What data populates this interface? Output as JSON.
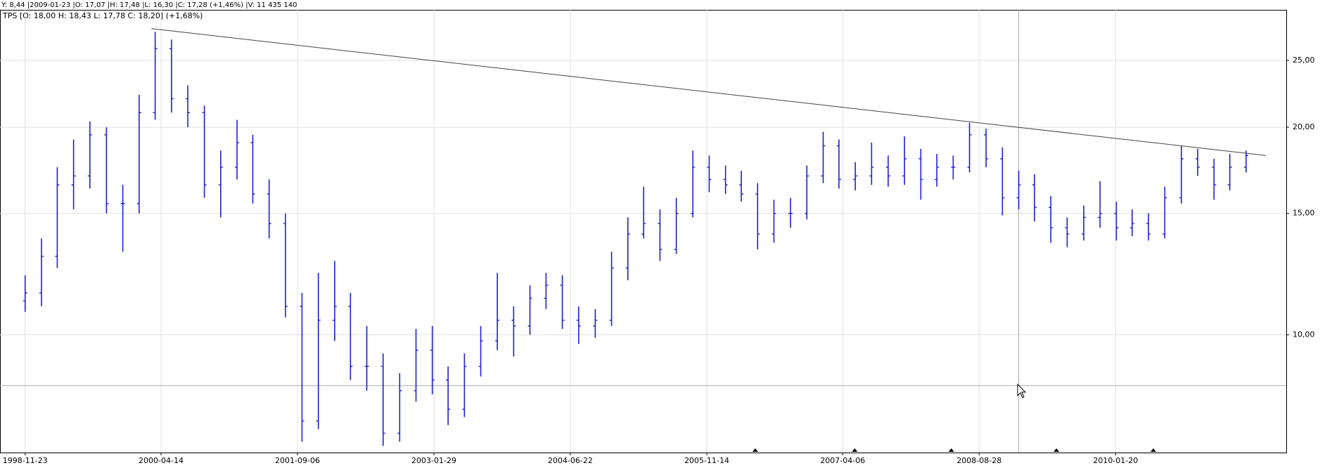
{
  "chart_data": {
    "type": "ohlc",
    "readout": "Y: 8,44 |2009-01-23 |O: 17,07 |H: 17,48 |L: 16,30 |C: 17,28 (+1,46%) |V: 11 435 140",
    "title": "TPS [O: 18,00  H: 18,43  L: 17,78  C: 18,20] (+1,68%)",
    "color": "#1f1fd6",
    "log_y": true,
    "grid": true,
    "xlim": [
      "1998-08-21",
      "2011-10-20"
    ],
    "xticks": [
      "1998-11-23",
      "2000-04-14",
      "2001-09-06",
      "2003-01-29",
      "2004-06-22",
      "2005-11-14",
      "2007-04-06",
      "2008-08-28",
      "2010-01-20"
    ],
    "ylim": [
      6.75,
      29.6
    ],
    "yticks": [
      {
        "value": 10,
        "label": "10,00"
      },
      {
        "value": 15,
        "label": "15,00"
      },
      {
        "value": 20,
        "label": "20,00"
      },
      {
        "value": 25,
        "label": "25,00"
      }
    ],
    "x": [
      "1998-11-23",
      "1999-01-23",
      "1999-03-23",
      "1999-05-23",
      "1999-07-23",
      "1999-09-23",
      "1999-11-23",
      "2000-01-23",
      "2000-03-23",
      "2000-05-23",
      "2000-07-23",
      "2000-09-23",
      "2000-11-23",
      "2001-01-23",
      "2001-03-23",
      "2001-05-23",
      "2001-07-23",
      "2001-09-23",
      "2001-11-23",
      "2002-01-23",
      "2002-03-23",
      "2002-05-23",
      "2002-07-23",
      "2002-09-23",
      "2002-11-23",
      "2003-01-23",
      "2003-03-23",
      "2003-05-23",
      "2003-07-23",
      "2003-09-23",
      "2003-11-23",
      "2004-01-23",
      "2004-03-23",
      "2004-05-23",
      "2004-07-23",
      "2004-09-23",
      "2004-11-23",
      "2005-01-23",
      "2005-03-23",
      "2005-05-23",
      "2005-07-23",
      "2005-09-23",
      "2005-11-23",
      "2006-01-23",
      "2006-03-23",
      "2006-05-23",
      "2006-07-23",
      "2006-09-23",
      "2006-11-23",
      "2007-01-23",
      "2007-03-23",
      "2007-05-23",
      "2007-07-23",
      "2007-09-23",
      "2007-11-23",
      "2008-01-23",
      "2008-03-23",
      "2008-05-23",
      "2008-07-23",
      "2008-09-23",
      "2008-11-23",
      "2009-01-23",
      "2009-03-23",
      "2009-05-23",
      "2009-07-23",
      "2009-09-23",
      "2009-11-23",
      "2010-01-23",
      "2010-03-23",
      "2010-05-23",
      "2010-07-23",
      "2010-09-23",
      "2010-11-23",
      "2011-01-23",
      "2011-03-23",
      "2011-05-23"
    ],
    "open": [
      11.2,
      11.5,
      13,
      16.5,
      17,
      19.5,
      15.5,
      15.5,
      21,
      26,
      22,
      21,
      16.5,
      17.5,
      19,
      16,
      14.5,
      11,
      7.5,
      10.5,
      11,
      9,
      9,
      7.2,
      8.3,
      9.5,
      8.6,
      7.8,
      9,
      9.8,
      10.5,
      10.3,
      11.3,
      11.8,
      10.5,
      10.3,
      10.5,
      12.5,
      14,
      14.5,
      13.3,
      15,
      17.5,
      16.8,
      16.5,
      16,
      14,
      15,
      15,
      17,
      18.8,
      16.8,
      17,
      17.5,
      17,
      18,
      16.8,
      17.5,
      17.5,
      19.5,
      18,
      15.8,
      16.5,
      15.3,
      14.3,
      14,
      14.8,
      15,
      14.3,
      14.5,
      14,
      15.8,
      18,
      17.5,
      16.5,
      17.5
    ],
    "high": [
      12.2,
      13.8,
      17.5,
      19.2,
      20.4,
      20,
      16.5,
      22.3,
      27.5,
      26.8,
      23,
      21.5,
      18.5,
      20.5,
      19.5,
      16.8,
      15,
      11.5,
      12.3,
      12.8,
      11.5,
      10.3,
      9.4,
      8.8,
      10.2,
      10.3,
      9,
      9.4,
      10.3,
      12.3,
      11,
      11.8,
      12.3,
      12.2,
      11,
      10.9,
      13.2,
      14.8,
      16.4,
      15.2,
      15.8,
      18.5,
      18.2,
      17.6,
      17.3,
      16.6,
      15.7,
      15.8,
      17.6,
      19.7,
      19.2,
      17.8,
      19,
      18.2,
      19.4,
      18.6,
      18.3,
      18.2,
      20.3,
      19.9,
      18.7,
      17.3,
      17.1,
      15.9,
      14.8,
      15.4,
      16.7,
      15.6,
      15.2,
      15,
      16.4,
      18.8,
      18.6,
      18,
      18.3,
      18.5
    ],
    "low": [
      10.8,
      11,
      12.5,
      15.2,
      16.3,
      15,
      13.2,
      15,
      20.5,
      21,
      20,
      15.8,
      14.8,
      16.8,
      15.5,
      13.8,
      10.6,
      7,
      7.3,
      9.8,
      8.6,
      8.3,
      6.9,
      7,
      8,
      8.2,
      7.4,
      7.6,
      8.7,
      9.5,
      9.3,
      10,
      10.9,
      10.2,
      9.7,
      9.9,
      10.3,
      12,
      13.8,
      12.8,
      13.1,
      14.8,
      16.1,
      16,
      15.6,
      13.3,
      13.6,
      14.3,
      14.7,
      16.6,
      16.3,
      16.2,
      16.5,
      16.4,
      16.5,
      15.7,
      16.4,
      16.8,
      17.2,
      17.5,
      14.9,
      15.2,
      14.6,
      13.6,
      13.4,
      13.7,
      14.3,
      13.7,
      13.9,
      13.7,
      13.8,
      15.5,
      17,
      15.7,
      16.2,
      17.2
    ],
    "close": [
      11.5,
      13,
      16.5,
      17,
      19.5,
      15.5,
      15.5,
      21,
      26,
      22,
      21,
      16.5,
      17.5,
      19,
      16,
      14.5,
      11,
      7.5,
      10.5,
      11,
      9,
      9,
      7.2,
      8.3,
      9.5,
      8.6,
      7.8,
      9,
      9.8,
      10.5,
      10.3,
      11.3,
      11.8,
      10.5,
      10.3,
      10.5,
      12.5,
      14,
      14.5,
      13.3,
      15,
      17.5,
      16.8,
      16.5,
      16,
      14,
      15,
      15,
      17,
      18.8,
      16.8,
      17,
      17.5,
      17,
      18,
      16.8,
      17.5,
      17.5,
      19.5,
      18,
      15.8,
      16.5,
      15.3,
      14.3,
      14,
      14.8,
      15,
      14.3,
      14.5,
      14,
      15.8,
      18,
      17.5,
      16.5,
      17.5,
      18.2
    ],
    "trendline": {
      "x": [
        "2000-03-09",
        "2011-08-05"
      ],
      "y": [
        27.8,
        18.2
      ]
    },
    "crosshair": {
      "x": "2009-01-23",
      "y": 8.44
    },
    "event_markers": [
      "2006-05-14",
      "2007-05-21",
      "2008-05-16",
      "2009-06-13",
      "2010-06-10"
    ]
  }
}
